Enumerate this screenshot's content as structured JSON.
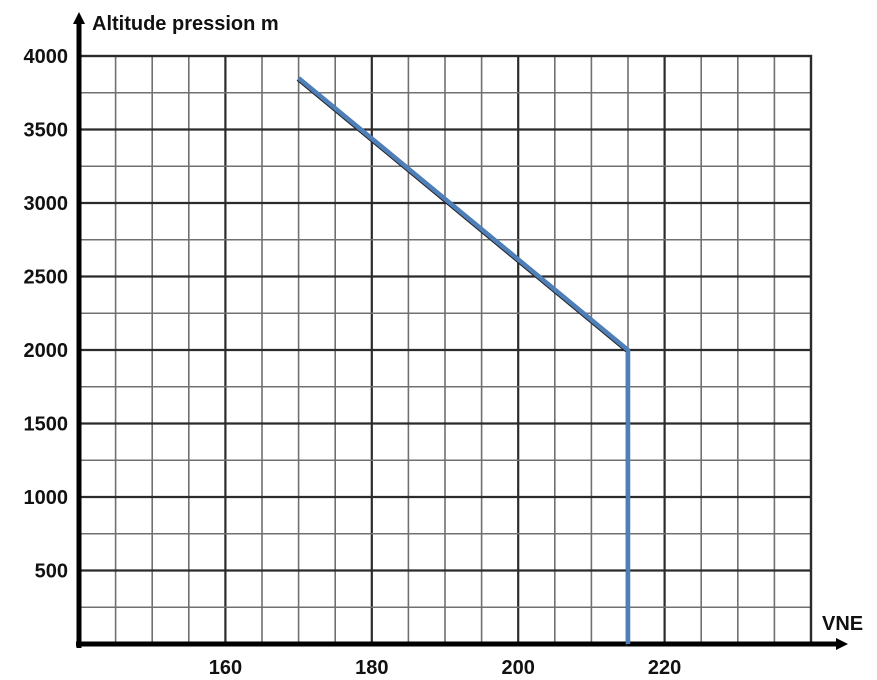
{
  "chart_data": {
    "type": "line",
    "ylabel": "Altitude pression m",
    "xlabel": "VNE",
    "xlim": [
      140,
      240
    ],
    "ylim": [
      0,
      4000
    ],
    "x_ticks": [
      160,
      180,
      200,
      220
    ],
    "y_ticks": [
      500,
      1000,
      1500,
      2000,
      2500,
      3000,
      3500,
      4000
    ],
    "grid": true,
    "series": [
      {
        "x": [
          170,
          215,
          215
        ],
        "y": [
          3850,
          2000,
          0
        ],
        "color": "#4f7fb8"
      }
    ]
  }
}
